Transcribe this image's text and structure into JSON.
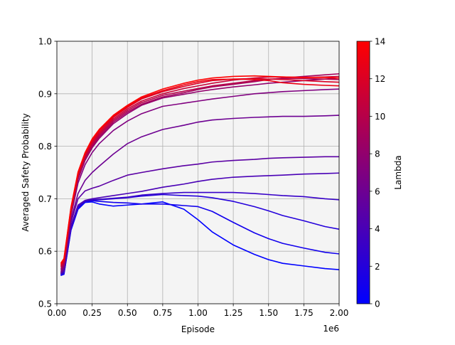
{
  "chart_data": {
    "type": "line",
    "xlabel": "Episode",
    "ylabel": "Averaged Safety Probability",
    "x_offset_label": "1e6",
    "xlim": [
      0,
      2000000
    ],
    "ylim": [
      0.5,
      1.0
    ],
    "x_ticks": [
      0,
      250000,
      500000,
      750000,
      1000000,
      1250000,
      1500000,
      1750000,
      2000000
    ],
    "x_tick_labels": [
      "0.00",
      "0.25",
      "0.50",
      "0.75",
      "1.00",
      "1.25",
      "1.50",
      "1.75",
      "2.00"
    ],
    "y_ticks": [
      0.5,
      0.6,
      0.7,
      0.8,
      0.9,
      1.0
    ],
    "y_tick_labels": [
      "0.5",
      "0.6",
      "0.7",
      "0.8",
      "0.9",
      "1.0"
    ],
    "grid": true,
    "plot_background": "#f4f4f4",
    "colorbar": {
      "label": "Lambda",
      "range": [
        0,
        14
      ],
      "ticks": [
        0,
        2,
        4,
        6,
        8,
        10,
        12,
        14
      ],
      "tick_labels": [
        "0",
        "2",
        "4",
        "6",
        "8",
        "10",
        "12",
        "14"
      ],
      "color_low": "#0000ff",
      "color_high": "#ff0000"
    },
    "x": [
      30000,
      50000,
      100000,
      150000,
      200000,
      250000,
      300000,
      400000,
      500000,
      600000,
      750000,
      900000,
      1000000,
      1100000,
      1250000,
      1400000,
      1500000,
      1600000,
      1750000,
      1900000,
      2000000
    ],
    "series": [
      {
        "lambda": 0.0,
        "values": [
          0.556,
          0.556,
          0.64,
          0.68,
          0.693,
          0.694,
          0.69,
          0.686,
          0.688,
          0.69,
          0.694,
          0.68,
          0.66,
          0.637,
          0.612,
          0.594,
          0.584,
          0.577,
          0.572,
          0.567,
          0.565
        ]
      },
      {
        "lambda": 1.0,
        "values": [
          0.554,
          0.556,
          0.642,
          0.682,
          0.694,
          0.696,
          0.695,
          0.693,
          0.692,
          0.69,
          0.69,
          0.687,
          0.685,
          0.676,
          0.655,
          0.635,
          0.624,
          0.615,
          0.606,
          0.598,
          0.595
        ]
      },
      {
        "lambda": 2.0,
        "values": [
          0.556,
          0.558,
          0.644,
          0.684,
          0.695,
          0.697,
          0.698,
          0.7,
          0.702,
          0.705,
          0.708,
          0.706,
          0.705,
          0.702,
          0.695,
          0.685,
          0.677,
          0.668,
          0.658,
          0.647,
          0.642
        ]
      },
      {
        "lambda": 3.0,
        "values": [
          0.557,
          0.56,
          0.645,
          0.685,
          0.696,
          0.698,
          0.699,
          0.701,
          0.703,
          0.707,
          0.71,
          0.712,
          0.712,
          0.712,
          0.712,
          0.71,
          0.708,
          0.706,
          0.704,
          0.7,
          0.698
        ]
      },
      {
        "lambda": 4.0,
        "values": [
          0.558,
          0.562,
          0.648,
          0.688,
          0.697,
          0.7,
          0.702,
          0.706,
          0.71,
          0.714,
          0.722,
          0.728,
          0.733,
          0.737,
          0.741,
          0.743,
          0.744,
          0.745,
          0.747,
          0.748,
          0.749
        ]
      },
      {
        "lambda": 5.0,
        "values": [
          0.559,
          0.564,
          0.655,
          0.7,
          0.715,
          0.72,
          0.724,
          0.735,
          0.745,
          0.75,
          0.757,
          0.763,
          0.766,
          0.77,
          0.773,
          0.775,
          0.777,
          0.778,
          0.779,
          0.78,
          0.78
        ]
      },
      {
        "lambda": 6.0,
        "values": [
          0.56,
          0.568,
          0.66,
          0.71,
          0.735,
          0.75,
          0.762,
          0.785,
          0.805,
          0.818,
          0.832,
          0.84,
          0.846,
          0.85,
          0.853,
          0.855,
          0.856,
          0.857,
          0.857,
          0.858,
          0.859
        ]
      },
      {
        "lambda": 7.0,
        "values": [
          0.562,
          0.57,
          0.668,
          0.73,
          0.765,
          0.788,
          0.805,
          0.83,
          0.848,
          0.862,
          0.876,
          0.882,
          0.886,
          0.89,
          0.895,
          0.9,
          0.902,
          0.904,
          0.906,
          0.908,
          0.909
        ]
      },
      {
        "lambda": 8.0,
        "values": [
          0.565,
          0.573,
          0.67,
          0.737,
          0.773,
          0.797,
          0.815,
          0.843,
          0.862,
          0.878,
          0.892,
          0.899,
          0.904,
          0.908,
          0.913,
          0.917,
          0.92,
          0.922,
          0.925,
          0.928,
          0.93
        ]
      },
      {
        "lambda": 9.0,
        "values": [
          0.567,
          0.575,
          0.673,
          0.74,
          0.776,
          0.8,
          0.818,
          0.846,
          0.865,
          0.88,
          0.894,
          0.902,
          0.908,
          0.913,
          0.918,
          0.923,
          0.927,
          0.93,
          0.933,
          0.936,
          0.938
        ]
      },
      {
        "lambda": 10.0,
        "values": [
          0.57,
          0.577,
          0.675,
          0.742,
          0.778,
          0.803,
          0.821,
          0.849,
          0.868,
          0.883,
          0.897,
          0.905,
          0.91,
          0.915,
          0.92,
          0.925,
          0.928,
          0.929,
          0.929,
          0.928,
          0.927
        ]
      },
      {
        "lambda": 11.0,
        "values": [
          0.572,
          0.58,
          0.678,
          0.745,
          0.781,
          0.806,
          0.824,
          0.852,
          0.871,
          0.886,
          0.9,
          0.91,
          0.915,
          0.92,
          0.926,
          0.93,
          0.932,
          0.932,
          0.931,
          0.932,
          0.933
        ]
      },
      {
        "lambda": 12.0,
        "values": [
          0.574,
          0.582,
          0.68,
          0.747,
          0.784,
          0.809,
          0.827,
          0.855,
          0.874,
          0.89,
          0.904,
          0.914,
          0.92,
          0.925,
          0.928,
          0.929,
          0.928,
          0.927,
          0.925,
          0.923,
          0.922
        ]
      },
      {
        "lambda": 13.0,
        "values": [
          0.576,
          0.584,
          0.682,
          0.749,
          0.786,
          0.812,
          0.83,
          0.857,
          0.876,
          0.892,
          0.906,
          0.917,
          0.923,
          0.927,
          0.928,
          0.927,
          0.925,
          0.921,
          0.918,
          0.916,
          0.915
        ]
      },
      {
        "lambda": 14.0,
        "values": [
          0.578,
          0.586,
          0.684,
          0.751,
          0.788,
          0.814,
          0.832,
          0.859,
          0.878,
          0.894,
          0.909,
          0.92,
          0.926,
          0.93,
          0.933,
          0.934,
          0.933,
          0.932,
          0.931,
          0.931,
          0.93
        ]
      }
    ]
  }
}
